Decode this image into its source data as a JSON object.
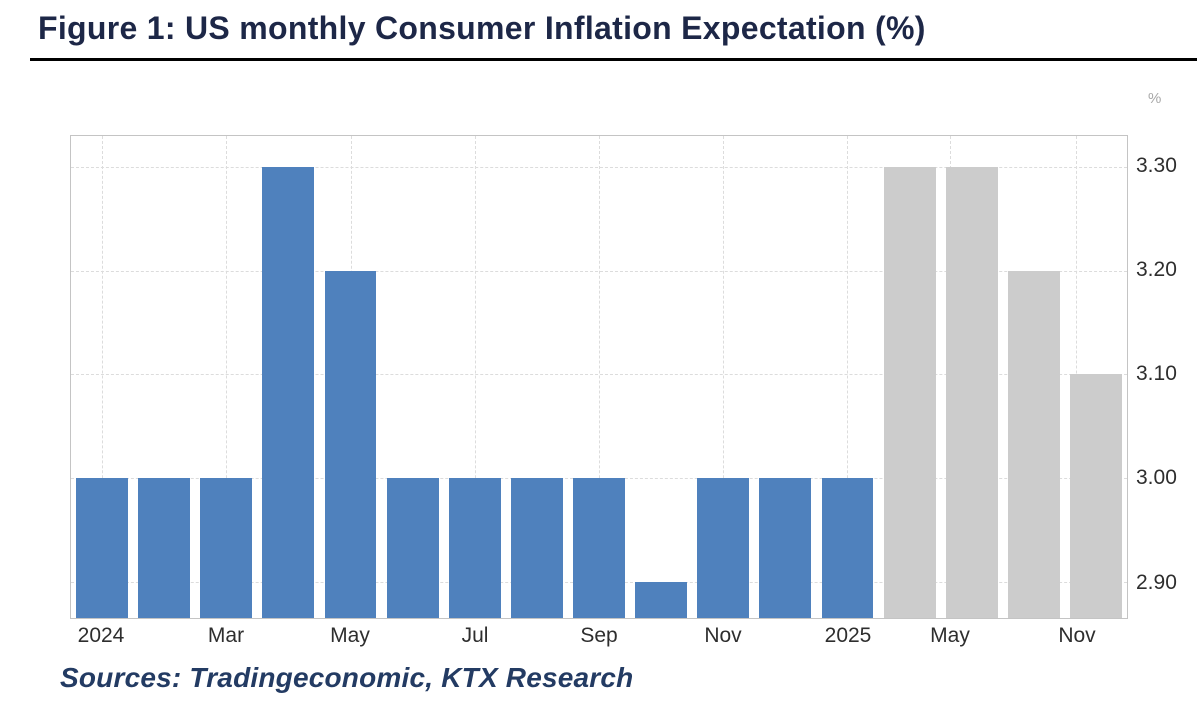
{
  "title": "Figure 1: US monthly Consumer Inflation Expectation (%)",
  "source_line": "Sources: Tradingeconomic, KTX Research",
  "colors": {
    "actual_bar": "#4f81bd",
    "forecast_bar": "#cccccc",
    "gridline": "#dcdcdc",
    "plot_border": "#c4c4c4",
    "title_text": "#1d2747",
    "tick_text": "#2e2e2e",
    "unit_text": "#a8a8a8",
    "source_text": "#233b63",
    "title_rule": "#000000"
  },
  "chart_data": {
    "type": "bar",
    "title": "US monthly Consumer Inflation Expectation (%)",
    "xlabel": "",
    "ylabel": "%",
    "ylim": [
      2.865,
      3.33
    ],
    "grid": true,
    "legend": "none",
    "yticks": [
      {
        "label": "3.30",
        "value": 3.3
      },
      {
        "label": "3.20",
        "value": 3.2
      },
      {
        "label": "3.10",
        "value": 3.1
      },
      {
        "label": "3.00",
        "value": 3.0
      },
      {
        "label": "2.90",
        "value": 2.9
      }
    ],
    "xticks": [
      {
        "label": "2024",
        "pos": 0.0294
      },
      {
        "label": "Mar",
        "pos": 0.1471
      },
      {
        "label": "May",
        "pos": 0.2647
      },
      {
        "label": "Jul",
        "pos": 0.3824
      },
      {
        "label": "Sep",
        "pos": 0.5
      },
      {
        "label": "Nov",
        "pos": 0.6176
      },
      {
        "label": "2025",
        "pos": 0.7353
      },
      {
        "label": "May",
        "pos": 0.832
      },
      {
        "label": "Nov",
        "pos": 0.952
      }
    ],
    "bars": [
      {
        "month": "2024-01",
        "value": 3.0,
        "series": "actual"
      },
      {
        "month": "2024-02",
        "value": 3.0,
        "series": "actual"
      },
      {
        "month": "2024-03",
        "value": 3.0,
        "series": "actual"
      },
      {
        "month": "2024-04",
        "value": 3.3,
        "series": "actual"
      },
      {
        "month": "2024-05",
        "value": 3.2,
        "series": "actual"
      },
      {
        "month": "2024-06",
        "value": 3.0,
        "series": "actual"
      },
      {
        "month": "2024-07",
        "value": 3.0,
        "series": "actual"
      },
      {
        "month": "2024-08",
        "value": 3.0,
        "series": "actual"
      },
      {
        "month": "2024-09",
        "value": 3.0,
        "series": "actual"
      },
      {
        "month": "2024-10",
        "value": 2.9,
        "series": "actual"
      },
      {
        "month": "2024-11",
        "value": 3.0,
        "series": "actual"
      },
      {
        "month": "2024-12",
        "value": 3.0,
        "series": "actual"
      },
      {
        "month": "2025-01",
        "value": 3.0,
        "series": "actual"
      },
      {
        "month": "2025-02",
        "value": 3.3,
        "series": "forecast"
      },
      {
        "month": "2025-05",
        "value": 3.3,
        "series": "forecast"
      },
      {
        "month": "2025-08",
        "value": 3.2,
        "series": "forecast"
      },
      {
        "month": "2025-11",
        "value": 3.1,
        "series": "forecast"
      }
    ]
  }
}
